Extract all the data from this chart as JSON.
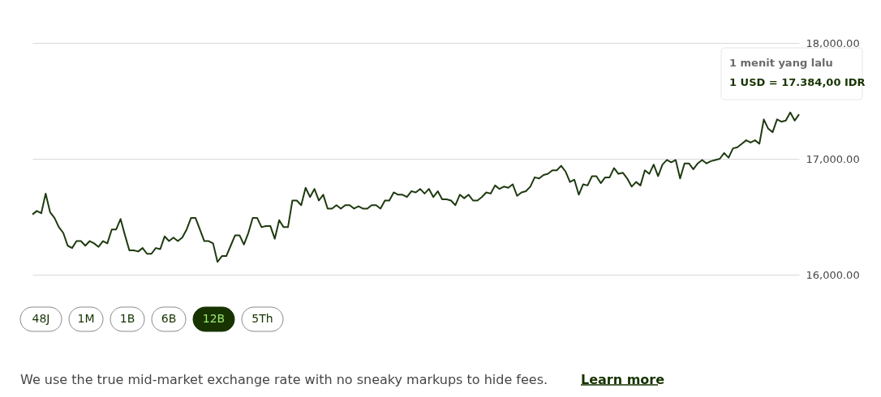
{
  "chart_data": {
    "type": "line",
    "categories": [
      null,
      null,
      null,
      null,
      null,
      null,
      null,
      null,
      null,
      null,
      null,
      null,
      null,
      null,
      null,
      null,
      null,
      null,
      null,
      null,
      null,
      null,
      null,
      null,
      null,
      null,
      null,
      null,
      null,
      null,
      null,
      null,
      null,
      null,
      null,
      null,
      null,
      null,
      null,
      null,
      null,
      null,
      null,
      null,
      null,
      null,
      null,
      null,
      null,
      null,
      null,
      null,
      null,
      null,
      null,
      null,
      null,
      null,
      null,
      null,
      null,
      null,
      null,
      null,
      null,
      null,
      null,
      null,
      null,
      null,
      null,
      null,
      null,
      null,
      null,
      null,
      null,
      null,
      null,
      null,
      null,
      null,
      null,
      null,
      null,
      null,
      null,
      null,
      null,
      null,
      null,
      null,
      null,
      null,
      null,
      null,
      null,
      null,
      null,
      null,
      null,
      null,
      null,
      null,
      null,
      null,
      null,
      null,
      null,
      null,
      null,
      null,
      null,
      null,
      null,
      null,
      null,
      null,
      null,
      null,
      null,
      null,
      null,
      null,
      null,
      null,
      null,
      null,
      null,
      null,
      null,
      null,
      null,
      null,
      null,
      null,
      null,
      null,
      null,
      null,
      null,
      null,
      null,
      null,
      null,
      null,
      null,
      null,
      null,
      null,
      null,
      null,
      null,
      null,
      null,
      null,
      null,
      null,
      null,
      null,
      null,
      null,
      null,
      null,
      null,
      null,
      null,
      null,
      null,
      null,
      null,
      null,
      null,
      null,
      null
    ],
    "series": [
      {
        "color": "#1e3a0f",
        "values": [
          16520,
          16550,
          16530,
          16700,
          16540,
          16490,
          16410,
          16360,
          16250,
          16230,
          16290,
          16290,
          16250,
          16290,
          16270,
          16240,
          16290,
          16270,
          16390,
          16390,
          16480,
          16340,
          16210,
          16210,
          16200,
          16230,
          16180,
          16180,
          16230,
          16220,
          16330,
          16290,
          16320,
          16290,
          16320,
          16390,
          16490,
          16490,
          16390,
          16290,
          16290,
          16270,
          16110,
          16160,
          16160,
          16250,
          16340,
          16340,
          16260,
          16360,
          16490,
          16490,
          16410,
          16420,
          16420,
          16310,
          16470,
          16410,
          16410,
          16640,
          16640,
          16600,
          16750,
          16670,
          16740,
          16640,
          16690,
          16570,
          16570,
          16600,
          16570,
          16600,
          16600,
          16570,
          16590,
          16570,
          16570,
          16600,
          16600,
          16570,
          16640,
          16640,
          16710,
          16690,
          16690,
          16670,
          16720,
          16710,
          16740,
          16700,
          16740,
          16670,
          16720,
          16650,
          16650,
          16640,
          16600,
          16690,
          16660,
          16690,
          16640,
          16640,
          16670,
          16710,
          16700,
          16770,
          16740,
          16760,
          16750,
          16780,
          16680,
          16710,
          16720,
          16760,
          16840,
          16830,
          16860,
          16870,
          16900,
          16900,
          16940,
          16890,
          16800,
          16820,
          16690,
          16780,
          16770,
          16850,
          16850,
          16790,
          16840,
          16840,
          16920,
          16870,
          16880,
          16830,
          16760,
          16800,
          16770,
          16900,
          16870,
          16950,
          16850,
          16950,
          16990,
          16970,
          16990,
          16830,
          16960,
          16960,
          16910,
          16960,
          16990,
          16960,
          16980,
          16990,
          17000,
          17050,
          17010,
          17090,
          17100,
          17130,
          17160,
          17140,
          17160,
          17130,
          17340,
          17260,
          17230,
          17340,
          17320,
          17330,
          17400,
          17330,
          17384
        ]
      }
    ],
    "ylim": [
      16000,
      18000
    ],
    "yticks": [
      {
        "value": 16000,
        "label": "16,000.00"
      },
      {
        "value": 17000,
        "label": "17,000.00"
      },
      {
        "value": 18000,
        "label": "18,000.00"
      }
    ],
    "grid": "y",
    "tick_labels": "y",
    "marker": "none",
    "line_style": "solid",
    "annotations": [
      "1 menit yang lalu",
      "1 USD = 17.384,00 IDR",
      "48J",
      "1M",
      "1B",
      "6B",
      "12B",
      "5Th",
      "We use the true mid-market exchange rate with no sneaky markups to hide fees.",
      "Learn more"
    ]
  }
}
